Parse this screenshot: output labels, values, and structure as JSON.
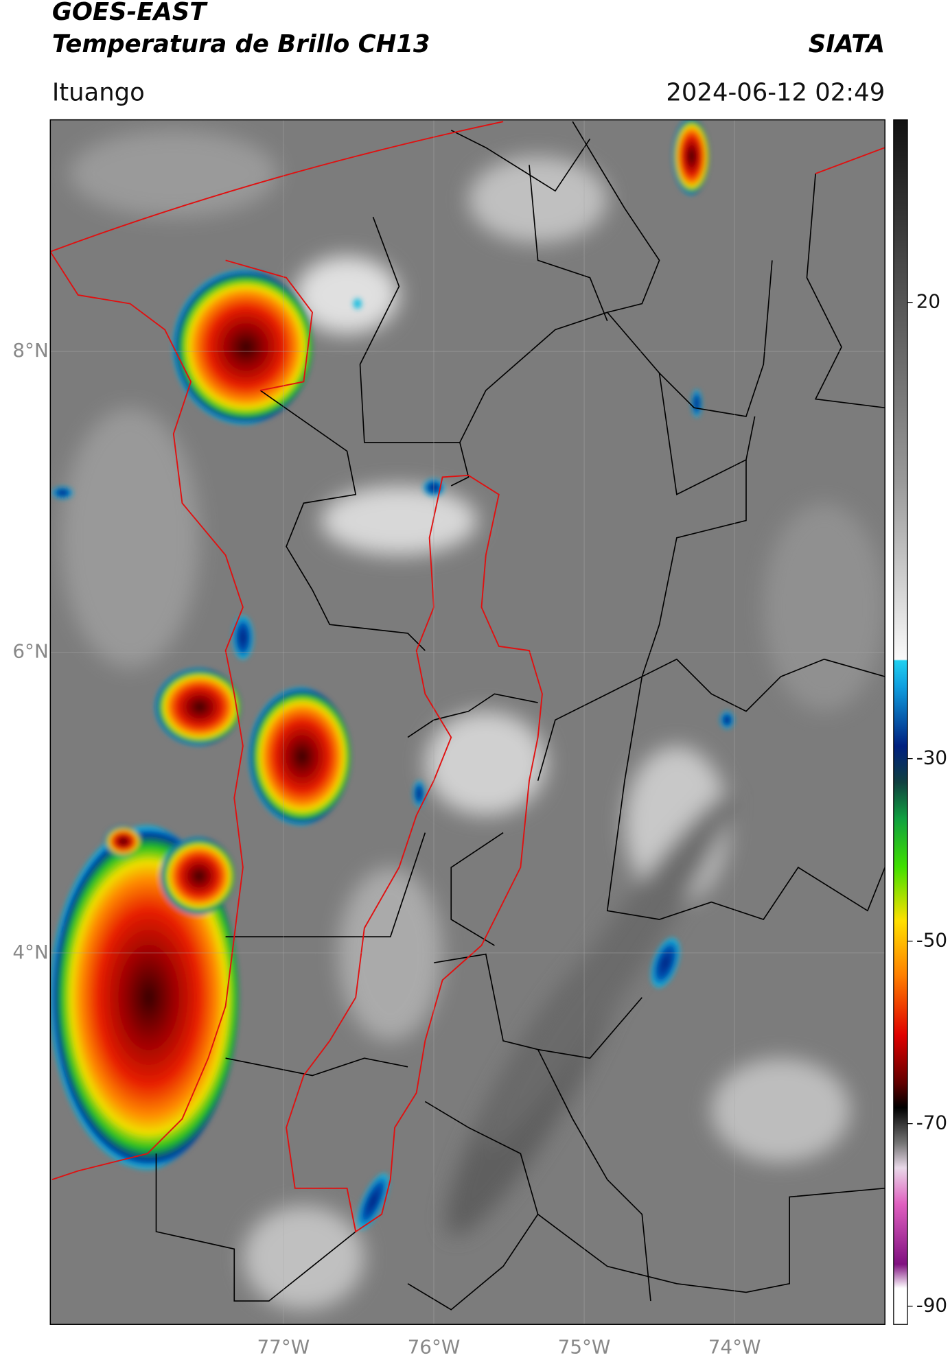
{
  "header": {
    "title": "GOES-EAST",
    "subtitle": "Temperatura de Brillo CH13",
    "source": "SIATA",
    "region": "Ituango",
    "datetime": "2024-06-12 02:49"
  },
  "map": {
    "xlim": [
      -78.55,
      -73
    ],
    "ylim": [
      1.53,
      9.54
    ],
    "xticks": [
      {
        "value": -77,
        "label": "77°W"
      },
      {
        "value": -76,
        "label": "76°W"
      },
      {
        "value": -75,
        "label": "75°W"
      },
      {
        "value": -74,
        "label": "74°W"
      }
    ],
    "yticks": [
      {
        "value": 8,
        "label": "8°N"
      },
      {
        "value": 6,
        "label": "6°N"
      },
      {
        "value": 4,
        "label": "4°N"
      }
    ]
  },
  "colorbar": {
    "clim": [
      -92,
      40
    ],
    "ticks": [
      20,
      -30,
      -50,
      -70,
      -90
    ]
  }
}
